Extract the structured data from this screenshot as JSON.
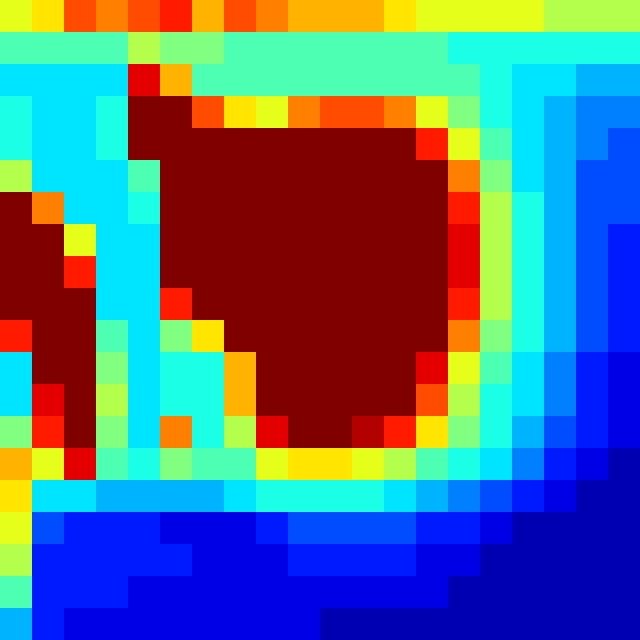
{
  "chart_data": {
    "type": "heatmap",
    "tick_labels": false,
    "zlim": [
      0,
      1
    ],
    "cells": [
      [
        0.6,
        0.65,
        0.8,
        0.75,
        0.8,
        0.85,
        0.7,
        0.8,
        0.75,
        0.7,
        0.7,
        0.7,
        0.65,
        0.6,
        0.6,
        0.6,
        0.6,
        0.55,
        0.55,
        0.55
      ],
      [
        0.45,
        0.45,
        0.45,
        0.45,
        0.55,
        0.5,
        0.5,
        0.45,
        0.45,
        0.45,
        0.45,
        0.45,
        0.45,
        0.45,
        0.4,
        0.4,
        0.4,
        0.4,
        0.4,
        0.4
      ],
      [
        0.35,
        0.35,
        0.35,
        0.35,
        0.9,
        0.7,
        0.45,
        0.45,
        0.45,
        0.45,
        0.45,
        0.45,
        0.45,
        0.45,
        0.45,
        0.4,
        0.35,
        0.35,
        0.3,
        0.3
      ],
      [
        0.4,
        0.35,
        0.35,
        0.4,
        1,
        1,
        0.8,
        0.65,
        0.6,
        0.75,
        0.8,
        0.8,
        0.75,
        0.6,
        0.5,
        0.4,
        0.35,
        0.3,
        0.25,
        0.25
      ],
      [
        0.4,
        0.35,
        0.35,
        0.4,
        1,
        1,
        1,
        1,
        1,
        1,
        1,
        1,
        1,
        0.85,
        0.6,
        0.45,
        0.35,
        0.3,
        0.25,
        0.2
      ],
      [
        0.55,
        0.35,
        0.35,
        0.35,
        0.45,
        1,
        1,
        1,
        1,
        1,
        1,
        1,
        1,
        1,
        0.75,
        0.5,
        0.35,
        0.3,
        0.2,
        0.2
      ],
      [
        1,
        0.75,
        0.35,
        0.35,
        0.4,
        1,
        1,
        1,
        1,
        1,
        1,
        1,
        1,
        1,
        0.85,
        0.55,
        0.4,
        0.3,
        0.2,
        0.2
      ],
      [
        1,
        1,
        0.6,
        0.35,
        0.35,
        1,
        1,
        1,
        1,
        1,
        1,
        1,
        1,
        1,
        0.9,
        0.55,
        0.4,
        0.3,
        0.2,
        0.15
      ],
      [
        1,
        1,
        0.85,
        0.35,
        0.35,
        1,
        1,
        1,
        1,
        1,
        1,
        1,
        1,
        1,
        0.9,
        0.55,
        0.4,
        0.3,
        0.2,
        0.15
      ],
      [
        1,
        1,
        1,
        0.35,
        0.35,
        0.85,
        1,
        1,
        1,
        1,
        1,
        1,
        1,
        1,
        0.85,
        0.55,
        0.4,
        0.3,
        0.2,
        0.15
      ],
      [
        0.85,
        1,
        1,
        0.45,
        0.35,
        0.5,
        0.65,
        1,
        1,
        1,
        1,
        1,
        1,
        1,
        0.75,
        0.5,
        0.4,
        0.3,
        0.2,
        0.15
      ],
      [
        0.35,
        1,
        1,
        0.5,
        0.35,
        0.4,
        0.4,
        0.7,
        1,
        1,
        1,
        1,
        1,
        0.9,
        0.6,
        0.45,
        0.35,
        0.25,
        0.15,
        0.1
      ],
      [
        0.35,
        0.9,
        1,
        0.55,
        0.35,
        0.4,
        0.4,
        0.7,
        1,
        1,
        1,
        1,
        1,
        0.8,
        0.55,
        0.4,
        0.35,
        0.25,
        0.15,
        0.1
      ],
      [
        0.5,
        0.85,
        1,
        0.5,
        0.35,
        0.75,
        0.4,
        0.55,
        0.9,
        1,
        1,
        0.95,
        0.85,
        0.65,
        0.5,
        0.4,
        0.3,
        0.2,
        0.15,
        0.1
      ],
      [
        0.7,
        0.6,
        0.9,
        0.45,
        0.4,
        0.5,
        0.45,
        0.45,
        0.6,
        0.65,
        0.65,
        0.6,
        0.55,
        0.45,
        0.4,
        0.35,
        0.25,
        0.15,
        0.1,
        0.05
      ],
      [
        0.65,
        0.35,
        0.35,
        0.3,
        0.3,
        0.3,
        0.3,
        0.35,
        0.4,
        0.4,
        0.4,
        0.4,
        0.35,
        0.3,
        0.25,
        0.2,
        0.15,
        0.1,
        0.05,
        0.05
      ],
      [
        0.6,
        0.2,
        0.15,
        0.15,
        0.15,
        0.1,
        0.1,
        0.1,
        0.15,
        0.2,
        0.2,
        0.2,
        0.2,
        0.15,
        0.15,
        0.1,
        0.05,
        0.05,
        0.05,
        0.05
      ],
      [
        0.55,
        0.15,
        0.15,
        0.15,
        0.15,
        0.15,
        0.1,
        0.1,
        0.1,
        0.15,
        0.15,
        0.15,
        0.15,
        0.1,
        0.1,
        0.05,
        0.05,
        0.05,
        0.05,
        0.05
      ],
      [
        0.45,
        0.15,
        0.15,
        0.15,
        0.1,
        0.1,
        0.1,
        0.1,
        0.1,
        0.1,
        0.1,
        0.1,
        0.1,
        0.1,
        0.05,
        0.05,
        0.05,
        0.05,
        0.05,
        0.05
      ],
      [
        0.3,
        0.15,
        0.1,
        0.1,
        0.1,
        0.1,
        0.1,
        0.1,
        0.1,
        0.1,
        0.05,
        0.05,
        0.05,
        0.05,
        0.05,
        0.05,
        0.05,
        0.05,
        0.05,
        0.05
      ]
    ]
  }
}
